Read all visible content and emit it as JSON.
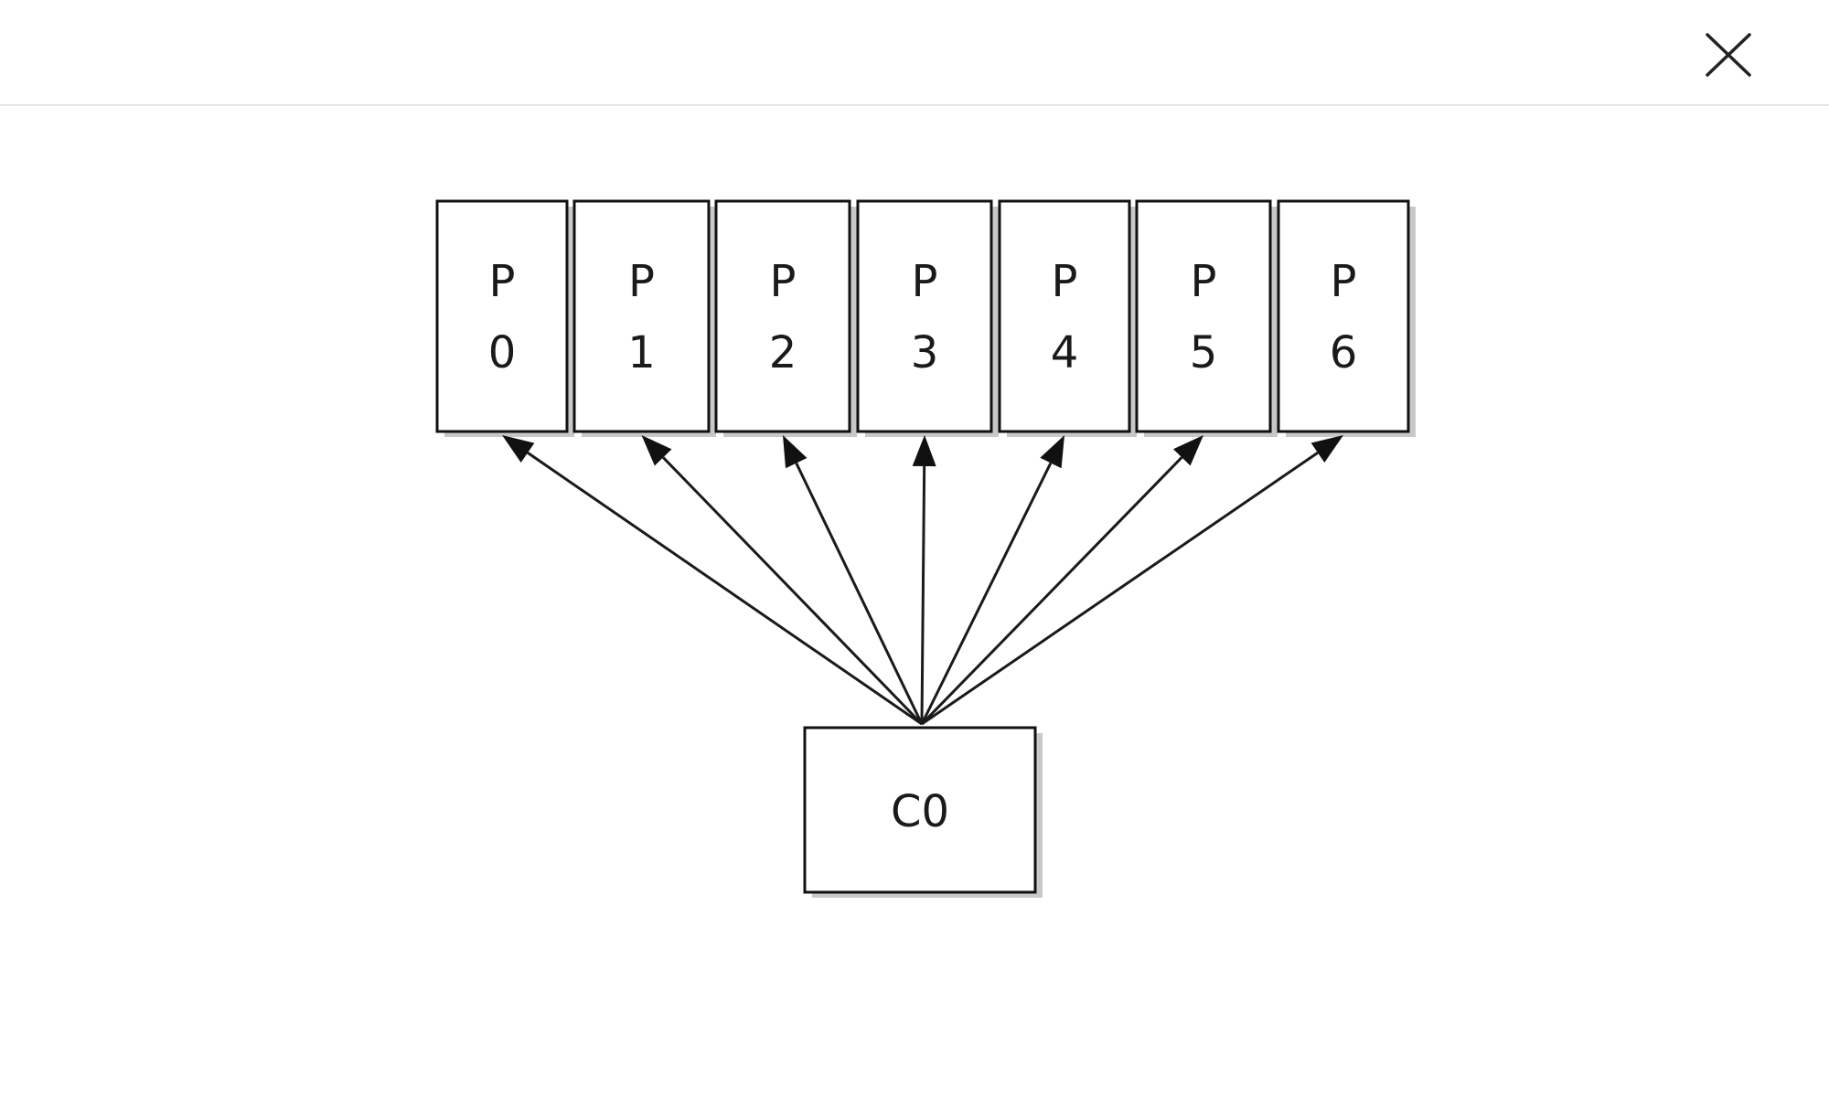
{
  "diagram": {
    "processors": [
      {
        "letter": "P",
        "number": "0"
      },
      {
        "letter": "P",
        "number": "1"
      },
      {
        "letter": "P",
        "number": "2"
      },
      {
        "letter": "P",
        "number": "3"
      },
      {
        "letter": "P",
        "number": "4"
      },
      {
        "letter": "P",
        "number": "5"
      },
      {
        "letter": "P",
        "number": "6"
      }
    ],
    "source": {
      "label": "C0"
    }
  },
  "icons": {
    "close": "close-icon"
  },
  "colors": {
    "background": "#ffffff",
    "stroke": "#111111",
    "divider": "#e4e4e4"
  }
}
